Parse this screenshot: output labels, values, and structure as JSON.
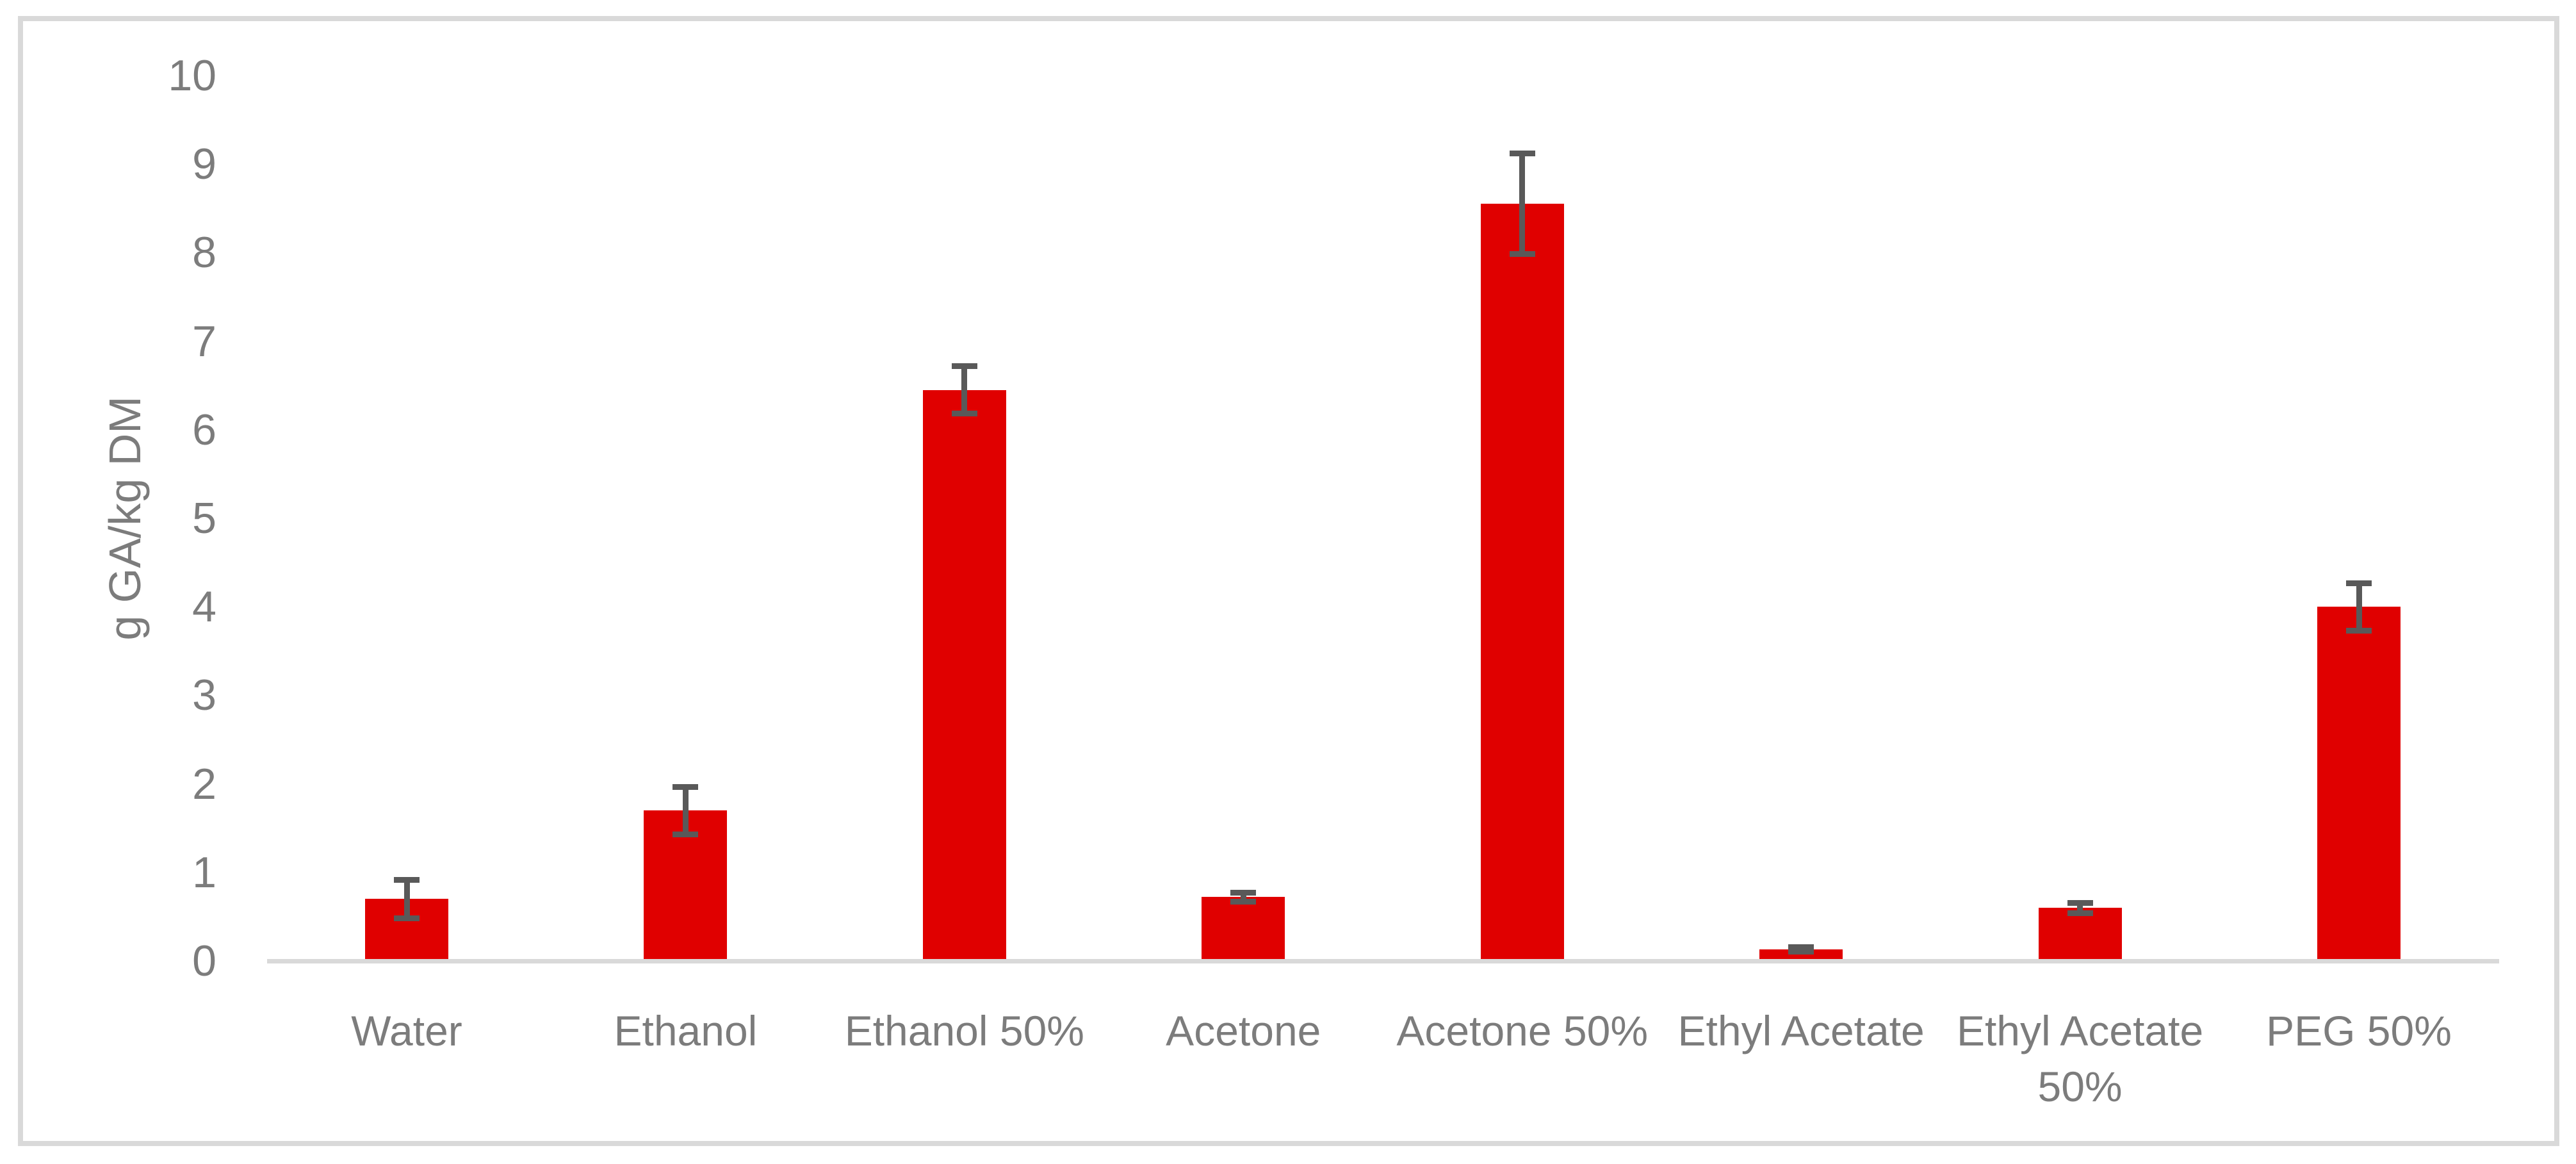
{
  "chart_data": {
    "type": "bar",
    "title": "",
    "xlabel": "",
    "ylabel": "g GA/kg DM",
    "ylim": [
      0,
      10
    ],
    "ytick_step": 1,
    "yticks": [
      0,
      1,
      2,
      3,
      4,
      5,
      6,
      7,
      8,
      9,
      10
    ],
    "grid": false,
    "legend": false,
    "categories": [
      "Water",
      "Ethanol",
      "Ethanol 50%",
      "Acetone",
      "Acetone 50%",
      "Ethyl Acetate",
      "Ethyl Acetate 50%",
      "PEG 50%"
    ],
    "category_label_lines": [
      [
        "Water"
      ],
      [
        "Ethanol"
      ],
      [
        "Ethanol 50%"
      ],
      [
        "Acetone"
      ],
      [
        "Acetone 50%"
      ],
      [
        "Ethyl Acetate"
      ],
      [
        "Ethyl Acetate",
        "50%"
      ],
      [
        "PEG 50%"
      ]
    ],
    "series": [
      {
        "name": "g GA/kg DM",
        "values": [
          0.7,
          1.7,
          6.45,
          0.72,
          8.55,
          0.13,
          0.6,
          4.0
        ],
        "error_bars": [
          0.25,
          0.3,
          0.3,
          0.08,
          0.6,
          0.06,
          0.09,
          0.3
        ]
      }
    ],
    "colors": {
      "bar": "#e00000",
      "error_bar": "#595959",
      "axis_label": "#7c7c7c",
      "axis_line": "#d9d9d9",
      "chart_border": "#d9d9d9",
      "background": "#ffffff"
    }
  }
}
